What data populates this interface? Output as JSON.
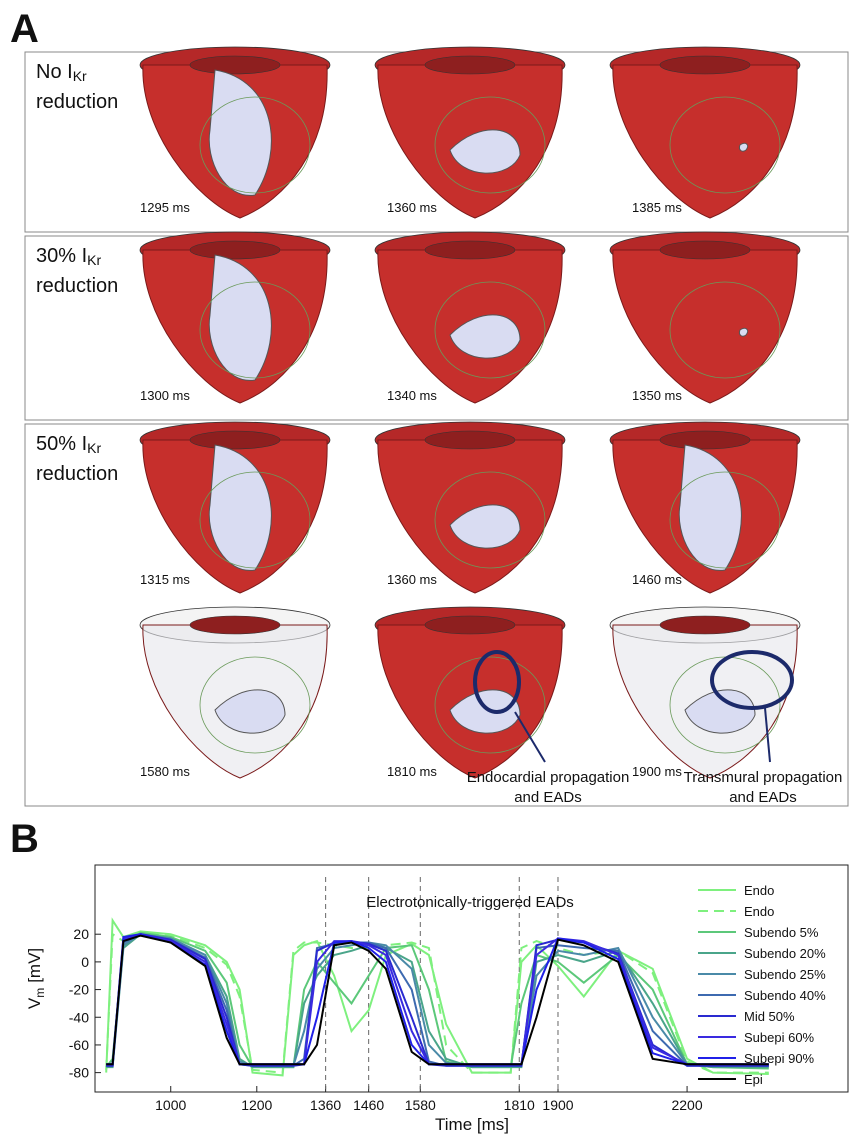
{
  "panel_a": {
    "label": "A",
    "rows": [
      {
        "label_pre": "No I",
        "label_sub": "Kr",
        "label_post": "reduction",
        "times": [
          "1295 ms",
          "1360 ms",
          "1385 ms"
        ]
      },
      {
        "label_pre": "30% I",
        "label_sub": "Kr",
        "label_post": "reduction",
        "times": [
          "1300 ms",
          "1340 ms",
          "1350 ms"
        ]
      },
      {
        "label_pre": "50% I",
        "label_sub": "Kr",
        "label_post": "reduction",
        "times": [
          "1315 ms",
          "1360 ms",
          "1460 ms",
          "1580 ms",
          "1810 ms",
          "1900 ms"
        ]
      }
    ],
    "annotations": [
      [
        "Endocardial propagation",
        "and EADs"
      ],
      [
        "Transmural propagation",
        "and EADs"
      ]
    ]
  },
  "chart_data": {
    "type": "line",
    "label": "B",
    "annotation": "Electrotonically-triggered EADs",
    "xlabel": "Time [ms]",
    "ylabel": {
      "main": "V",
      "sub": "m",
      "unit": "[mV]"
    },
    "xlim": [
      824,
      2574
    ],
    "ylim": [
      -94,
      70
    ],
    "xticks": [
      1000,
      1200,
      1360,
      1460,
      1580,
      1810,
      1900,
      2200
    ],
    "yticks": [
      20,
      0,
      -20,
      -40,
      -60,
      -80
    ],
    "marker_lines": [
      1360,
      1460,
      1580,
      1810,
      1900
    ],
    "x": [
      850,
      865,
      890,
      930,
      1000,
      1080,
      1130,
      1160,
      1190,
      1260,
      1285,
      1310,
      1340,
      1380,
      1420,
      1460,
      1500,
      1560,
      1600,
      1640,
      1700,
      1790,
      1815,
      1850,
      1900,
      1960,
      2040,
      2120,
      2200,
      2260,
      2390
    ],
    "series": [
      {
        "name": "Endo",
        "color": "#7ef07e",
        "dashed": false,
        "values": [
          -80,
          30,
          18,
          22,
          20,
          12,
          0,
          -20,
          -80,
          -82,
          5,
          12,
          15,
          -10,
          -50,
          -35,
          5,
          13,
          5,
          -45,
          -80,
          -80,
          0,
          12,
          -3,
          -25,
          8,
          -5,
          -70,
          -80,
          -81
        ]
      },
      {
        "name": "Endo",
        "color": "#7ef07e",
        "dashed": true,
        "values": [
          -78,
          20,
          15,
          21,
          19,
          10,
          -2,
          -25,
          -78,
          -80,
          8,
          14,
          14,
          12,
          10,
          10,
          12,
          14,
          10,
          -60,
          -80,
          -80,
          10,
          15,
          10,
          5,
          8,
          -8,
          -72,
          -80,
          -80
        ]
      },
      {
        "name": "Subendo 5%",
        "color": "#5cc87a",
        "dashed": false,
        "values": [
          -76,
          -70,
          12,
          21,
          18,
          8,
          -15,
          -60,
          -76,
          -76,
          -76,
          -20,
          0,
          -15,
          -30,
          -10,
          10,
          12,
          -20,
          -72,
          -76,
          -76,
          -30,
          5,
          0,
          -15,
          5,
          -20,
          -74,
          -76,
          -77
        ]
      },
      {
        "name": "Subendo 20%",
        "color": "#4aa58a",
        "dashed": false,
        "values": [
          -76,
          -76,
          10,
          20,
          17,
          5,
          -25,
          -70,
          -76,
          -76,
          -76,
          -30,
          -10,
          5,
          8,
          12,
          10,
          0,
          -50,
          -70,
          -76,
          -76,
          -76,
          0,
          5,
          0,
          8,
          -30,
          -74,
          -76,
          -76
        ]
      },
      {
        "name": "Subendo 25%",
        "color": "#4a8aa8",
        "dashed": false,
        "values": [
          -75,
          -75,
          12,
          20,
          17,
          5,
          -30,
          -72,
          -75,
          -75,
          -75,
          -50,
          -5,
          10,
          12,
          14,
          12,
          -5,
          -60,
          -73,
          -75,
          -75,
          -75,
          -10,
          8,
          5,
          10,
          -40,
          -74,
          -75,
          -75
        ]
      },
      {
        "name": "Subendo 40%",
        "color": "#3d6ab0",
        "dashed": false,
        "values": [
          -75,
          -75,
          14,
          20,
          16,
          3,
          -35,
          -74,
          -75,
          -75,
          -75,
          -70,
          10,
          13,
          14,
          14,
          10,
          -20,
          -72,
          -75,
          -75,
          -75,
          -75,
          10,
          12,
          10,
          8,
          -50,
          -75,
          -75,
          -75
        ]
      },
      {
        "name": "Mid 50%",
        "color": "#2a2ad0",
        "dashed": false,
        "values": [
          -75,
          -75,
          16,
          20,
          16,
          2,
          -40,
          -74,
          -75,
          -75,
          -75,
          -74,
          8,
          14,
          15,
          13,
          8,
          -40,
          -74,
          -75,
          -75,
          -75,
          -75,
          12,
          16,
          14,
          6,
          -60,
          -75,
          -75,
          -75
        ]
      },
      {
        "name": "Subepi 60%",
        "color": "#3a2ae0",
        "dashed": false,
        "values": [
          -74,
          -74,
          17,
          20,
          15,
          0,
          -45,
          -74,
          -74,
          -74,
          -74,
          -74,
          0,
          15,
          15,
          12,
          5,
          -50,
          -74,
          -74,
          -74,
          -74,
          -74,
          5,
          17,
          15,
          5,
          -62,
          -74,
          -74,
          -74
        ]
      },
      {
        "name": "Subepi 90%",
        "color": "#2020e8",
        "dashed": false,
        "values": [
          -74,
          -74,
          18,
          20,
          14,
          -2,
          -50,
          -74,
          -74,
          -74,
          -74,
          -74,
          -40,
          14,
          15,
          10,
          0,
          -60,
          -74,
          -74,
          -74,
          -74,
          -74,
          -20,
          17,
          14,
          2,
          -66,
          -74,
          -74,
          -74
        ]
      },
      {
        "name": "Epi",
        "color": "#000000",
        "dashed": false,
        "values": [
          -74,
          -74,
          15,
          19,
          14,
          -3,
          -55,
          -74,
          -74,
          -74,
          -74,
          -74,
          -60,
          12,
          14,
          8,
          -5,
          -65,
          -74,
          -74,
          -74,
          -74,
          -74,
          -40,
          16,
          12,
          0,
          -70,
          -74,
          -74,
          -74
        ]
      }
    ]
  }
}
